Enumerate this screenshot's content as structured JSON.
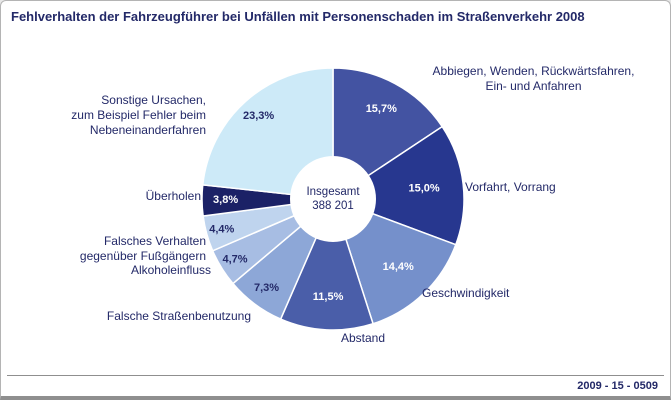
{
  "title": "Fehlverhalten der Fahrzeugführer bei Unfällen mit Personenschaden im Straßenverkehr 2008",
  "footer": {
    "code": "2009 - 15 - 0509"
  },
  "colors": {
    "text": "#232968",
    "rule": "#8f8f8f",
    "background": "#ffffff",
    "slice_separator": "#ffffff"
  },
  "chart_data": {
    "type": "pie",
    "title": "Fehlverhalten der Fahrzeugführer bei Unfällen mit Personenschaden im Straßenverkehr 2008",
    "center_label": "Insgesamt\n388 201",
    "total_label": "Insgesamt",
    "total_value": "388 201",
    "unit": "%",
    "direction": "clockwise",
    "start_angle_deg": 0,
    "legend_position": "around",
    "slices": [
      {
        "label": "Abbiegen, Wenden, Rückwärtsfahren,\nEin- und Anfahren",
        "value": 15.7,
        "pct_label": "15,7%",
        "color": "#4353a2",
        "pct_color": "#ffffff",
        "pct_r": 0.78
      },
      {
        "label": "Vorfahrt, Vorrang",
        "value": 15.0,
        "pct_label": "15,0%",
        "color": "#27378f",
        "pct_color": "#ffffff",
        "pct_r": 0.7
      },
      {
        "label": "Geschwindigkeit",
        "value": 14.4,
        "pct_label": "14,4%",
        "color": "#7590cb",
        "pct_color": "#ffffff",
        "pct_r": 0.72
      },
      {
        "label": "Abstand",
        "value": 11.5,
        "pct_label": "11,5%",
        "color": "#4a5ea9",
        "pct_color": "#ffffff",
        "pct_r": 0.75
      },
      {
        "label": "Falsche Straßenbenutzung",
        "value": 7.3,
        "pct_label": "7,3%",
        "color": "#8da7d7",
        "pct_color": "#232968",
        "pct_r": 0.85
      },
      {
        "label": "Alkoholeinfluss",
        "value": 4.7,
        "pct_label": "4,7%",
        "color": "#a7bde3",
        "pct_color": "#232968",
        "pct_r": 0.88
      },
      {
        "label": "Falsches Verhalten\ngegenüber Fußgängern",
        "value": 4.4,
        "pct_label": "4,4%",
        "color": "#bfd4ee",
        "pct_color": "#232968",
        "pct_r": 0.88
      },
      {
        "label": "Überholen",
        "value": 3.8,
        "pct_label": "3,8%",
        "color": "#1b2166",
        "pct_color": "#ffffff",
        "pct_r": 0.82
      },
      {
        "label": "Sonstige Ursachen,\nzum Beispiel Fehler beim\nNebeneinanderfahren",
        "value": 23.3,
        "pct_label": "23,3%",
        "color": "#cdeaf8",
        "pct_color": "#232968",
        "pct_r": 0.85
      }
    ]
  }
}
